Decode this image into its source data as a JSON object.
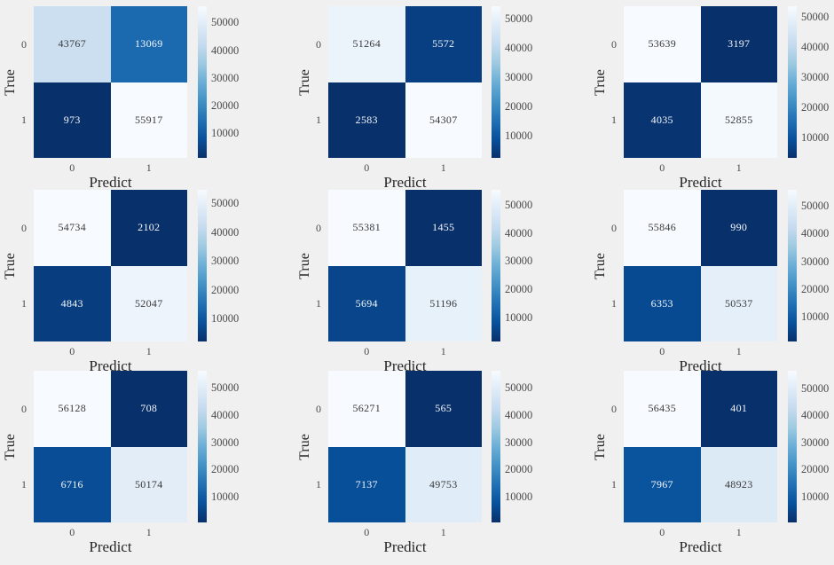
{
  "figure": {
    "background_color": "#f0f0f0",
    "text_color": "#262626",
    "tick_color": "#4a4a4a"
  },
  "chart_data": {
    "type": "heatmap",
    "description": "3x3 grid of binary confusion matrices, Blues reversed colormap (low=dark blue, high=near white), each subplot color-scaled to its own min/max, each with vertical colorbar",
    "grid": [
      3,
      3
    ],
    "xlabel": "Predict",
    "ylabel": "True",
    "x_tick_labels": [
      "0",
      "1"
    ],
    "y_tick_labels": [
      "0",
      "1"
    ],
    "colorbar_tick_values": [
      10000,
      20000,
      30000,
      40000,
      50000
    ],
    "colormap_name": "Blues_r",
    "colormap_stops": [
      "#f7bfff-placeholder-unused"
    ],
    "blues_rgb_stops": [
      [
        247,
        251,
        255
      ],
      [
        222,
        235,
        247
      ],
      [
        198,
        219,
        239
      ],
      [
        158,
        202,
        225
      ],
      [
        107,
        174,
        214
      ],
      [
        66,
        146,
        198
      ],
      [
        33,
        113,
        181
      ],
      [
        8,
        81,
        156
      ],
      [
        8,
        48,
        107
      ]
    ],
    "subplots": [
      {
        "row": 0,
        "col": 0,
        "matrix": [
          [
            43767,
            13069
          ],
          [
            973,
            55917
          ]
        ]
      },
      {
        "row": 0,
        "col": 1,
        "matrix": [
          [
            51264,
            5572
          ],
          [
            2583,
            54307
          ]
        ]
      },
      {
        "row": 0,
        "col": 2,
        "matrix": [
          [
            53639,
            3197
          ],
          [
            4035,
            52855
          ]
        ]
      },
      {
        "row": 1,
        "col": 0,
        "matrix": [
          [
            54734,
            2102
          ],
          [
            4843,
            52047
          ]
        ]
      },
      {
        "row": 1,
        "col": 1,
        "matrix": [
          [
            55381,
            1455
          ],
          [
            5694,
            51196
          ]
        ]
      },
      {
        "row": 1,
        "col": 2,
        "matrix": [
          [
            55846,
            990
          ],
          [
            6353,
            50537
          ]
        ]
      },
      {
        "row": 2,
        "col": 0,
        "matrix": [
          [
            56128,
            708
          ],
          [
            6716,
            50174
          ]
        ]
      },
      {
        "row": 2,
        "col": 1,
        "matrix": [
          [
            56271,
            565
          ],
          [
            7137,
            49753
          ]
        ]
      },
      {
        "row": 2,
        "col": 2,
        "matrix": [
          [
            56435,
            401
          ],
          [
            7967,
            48923
          ]
        ]
      }
    ]
  }
}
